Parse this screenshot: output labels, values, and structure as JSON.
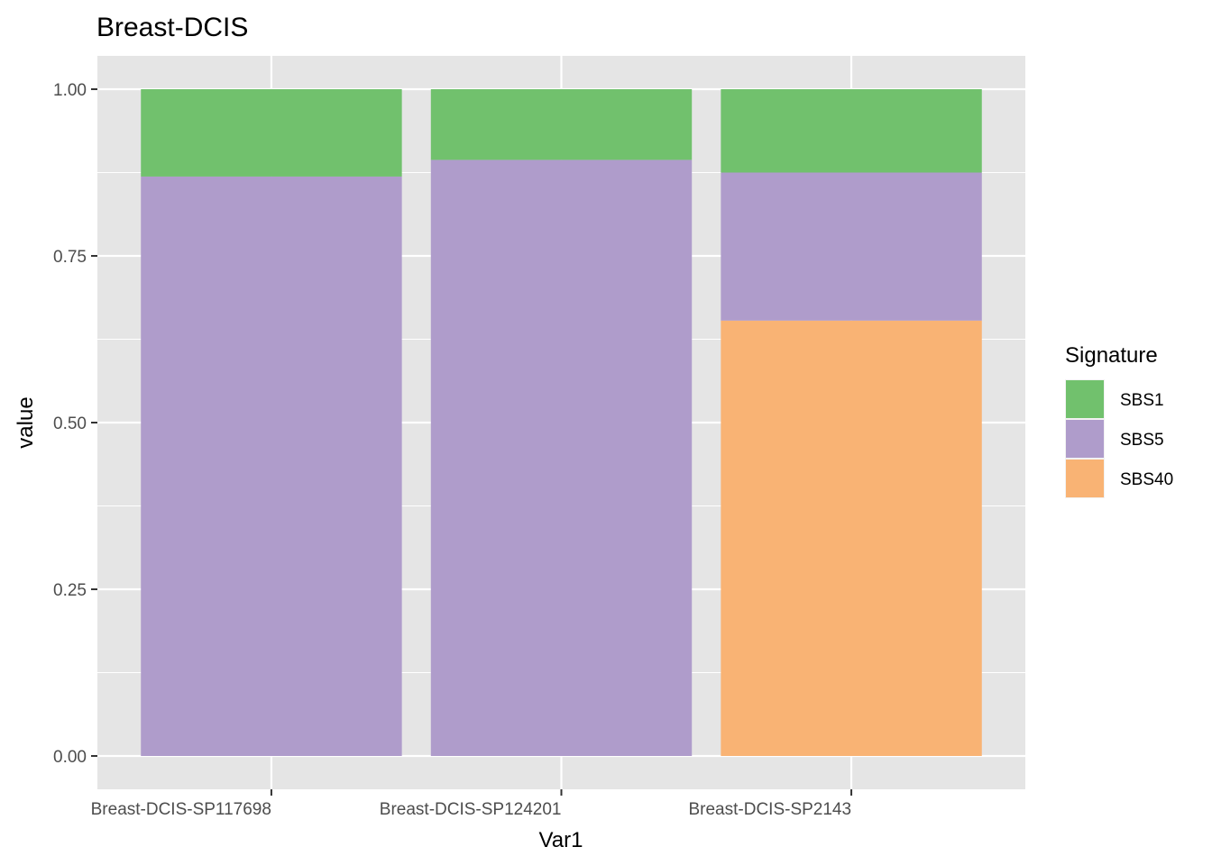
{
  "chart_data": {
    "type": "bar",
    "stacked": true,
    "title": "Breast-DCIS",
    "xlabel": "Var1",
    "ylabel": "value",
    "categories": [
      "Breast-DCIS-SP117698",
      "Breast-DCIS-SP124201",
      "Breast-DCIS-SP2143"
    ],
    "series": [
      {
        "name": "SBS1",
        "color": "#71c16d",
        "values": [
          0.131,
          0.106,
          0.125
        ]
      },
      {
        "name": "SBS5",
        "color": "#af9ccb",
        "values": [
          0.869,
          0.894,
          0.222
        ]
      },
      {
        "name": "SBS40",
        "color": "#f9b374",
        "values": [
          0.0,
          0.0,
          0.653
        ]
      }
    ],
    "ylim": [
      -0.05,
      1.05
    ],
    "yticks": [
      0.0,
      0.25,
      0.5,
      0.75,
      1.0
    ],
    "ytick_labels": [
      "0.00",
      "0.25",
      "0.50",
      "0.75",
      "1.00"
    ],
    "legend": {
      "title": "Signature",
      "position": "right"
    },
    "grid": true,
    "panel_color": "#e5e5e5"
  }
}
